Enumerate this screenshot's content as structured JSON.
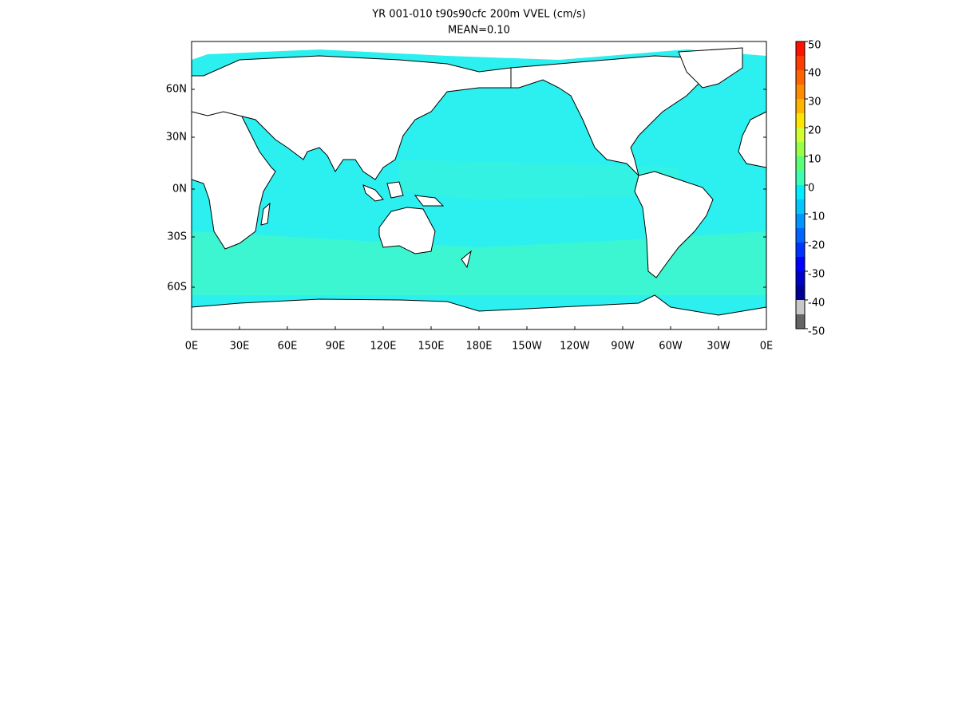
{
  "title": "YR 001-010 t90s90cfc 200m VVEL (cm/s)",
  "subtitle": "MEAN=0.10",
  "x_axis": {
    "ticks": [
      "0E",
      "30E",
      "60E",
      "90E",
      "120E",
      "150E",
      "180E",
      "150W",
      "120W",
      "90W",
      "60W",
      "30W",
      "0E"
    ]
  },
  "y_axis": {
    "ticks": [
      "60N",
      "30N",
      "0N",
      "30S",
      "60S"
    ]
  },
  "colorbar": {
    "ticks": [
      50,
      40,
      30,
      20,
      10,
      0,
      -10,
      -20,
      -30,
      -40,
      -50
    ],
    "colors": [
      "#ff1000",
      "#ff3c00",
      "#ff6400",
      "#ff8c00",
      "#ffb400",
      "#ffe600",
      "#d2ff2d",
      "#96ff46",
      "#5aff78",
      "#3cffb4",
      "#00eeff",
      "#00c8ff",
      "#0096ff",
      "#0064ff",
      "#0032ff",
      "#0000ff",
      "#0000c8",
      "#000096",
      "#c8c8c8",
      "#646464"
    ]
  }
}
